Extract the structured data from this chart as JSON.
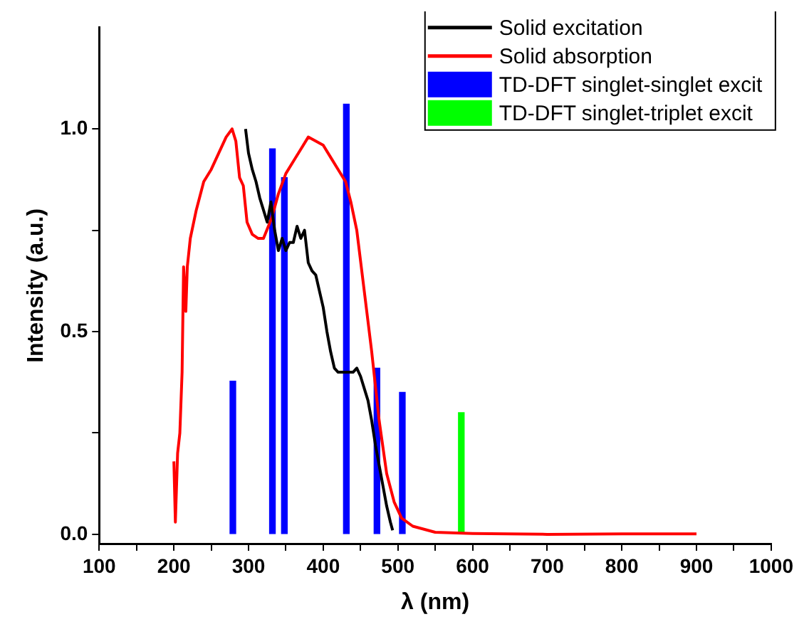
{
  "chart_data": {
    "type": "line",
    "xlabel": "λ (nm)",
    "ylabel": "Intensity (a.u.)",
    "xlim": [
      100,
      1000
    ],
    "ylim": [
      -0.023,
      1.25
    ],
    "xticks": [
      100,
      {
        "value": 150,
        "label": null
      },
      200,
      {
        "value": 250,
        "label": null
      },
      300,
      {
        "value": 350,
        "label": null
      },
      400,
      {
        "value": 450,
        "label": null
      },
      500,
      {
        "value": 550,
        "label": null
      },
      600,
      {
        "value": 650,
        "label": null
      },
      700,
      {
        "value": 750,
        "label": null
      },
      800,
      {
        "value": 850,
        "label": null
      },
      900,
      {
        "value": 950,
        "label": null
      },
      1000
    ],
    "yticks": [
      {
        "value": 0,
        "label": "0.0"
      },
      {
        "value": 0.25,
        "label": null
      },
      {
        "value": 0.5,
        "label": "0.5"
      },
      {
        "value": 0.75,
        "label": null
      },
      {
        "value": 1,
        "label": "1.0"
      }
    ],
    "legend": "top right",
    "grid": false,
    "marker": "none",
    "line_style": "solid",
    "series": [
      {
        "name": "Solid excitation",
        "color": "#000000",
        "x": [
          296,
          300,
          305,
          310,
          315,
          320,
          325,
          330,
          335,
          340,
          345,
          350,
          355,
          360,
          365,
          370,
          375,
          380,
          385,
          390,
          395,
          400,
          405,
          410,
          415,
          420,
          430,
          440,
          445,
          450,
          455,
          460,
          465,
          470,
          475,
          480,
          485,
          490,
          493
        ],
        "values": [
          1.0,
          0.94,
          0.9,
          0.87,
          0.83,
          0.8,
          0.77,
          0.82,
          0.75,
          0.7,
          0.73,
          0.7,
          0.72,
          0.72,
          0.76,
          0.73,
          0.75,
          0.67,
          0.65,
          0.64,
          0.6,
          0.56,
          0.5,
          0.45,
          0.41,
          0.4,
          0.4,
          0.4,
          0.41,
          0.39,
          0.36,
          0.33,
          0.28,
          0.22,
          0.17,
          0.12,
          0.07,
          0.03,
          0.01
        ]
      },
      {
        "name": "Solid absorption",
        "color": "#ff0000",
        "x": [
          200,
          202,
          205,
          208,
          211,
          213,
          216,
          218,
          222,
          230,
          240,
          250,
          260,
          270,
          278,
          283,
          288,
          293,
          298,
          305,
          313,
          320,
          331,
          340,
          350,
          360,
          370,
          380,
          390,
          400,
          410,
          420,
          430,
          437,
          445,
          455,
          465,
          475,
          485,
          495,
          505,
          520,
          550,
          600,
          700,
          800,
          900
        ],
        "values": [
          0.18,
          0.03,
          0.2,
          0.25,
          0.4,
          0.66,
          0.55,
          0.66,
          0.73,
          0.8,
          0.87,
          0.9,
          0.94,
          0.98,
          1.0,
          0.97,
          0.88,
          0.86,
          0.77,
          0.74,
          0.73,
          0.73,
          0.78,
          0.84,
          0.89,
          0.92,
          0.95,
          0.98,
          0.97,
          0.96,
          0.93,
          0.9,
          0.87,
          0.82,
          0.75,
          0.6,
          0.45,
          0.28,
          0.15,
          0.08,
          0.04,
          0.02,
          0.005,
          0.002,
          0.0,
          0.001,
          0.001
        ]
      },
      {
        "name": "TD-DFT singlet-singlet excit",
        "type": "bar",
        "color": "#0000ff",
        "x": [
          279,
          332,
          348,
          431,
          472,
          506
        ],
        "values": [
          0.378,
          0.951,
          0.88,
          1.061,
          0.41,
          0.35
        ]
      },
      {
        "name": "TD-DFT singlet-triplet excit",
        "type": "bar",
        "color": "#00ff00",
        "x": [
          585
        ],
        "values": [
          0.3
        ]
      }
    ]
  }
}
